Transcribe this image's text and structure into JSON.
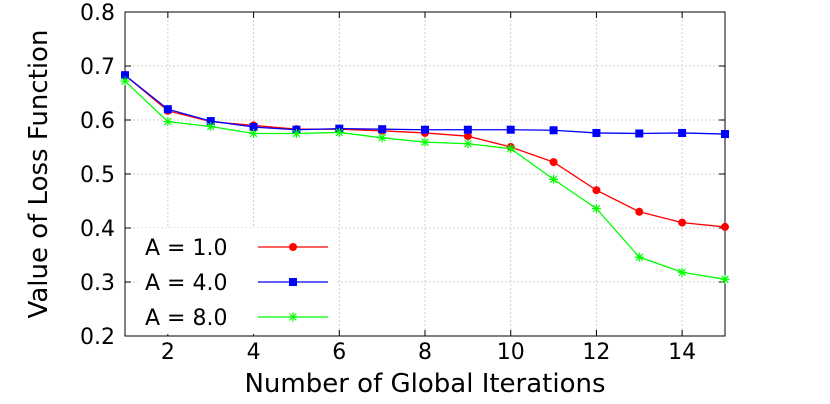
{
  "chart_data": {
    "type": "line",
    "title": "",
    "xlabel": "Number of Global Iterations",
    "ylabel": "Value of Loss Function",
    "xlim": [
      1,
      15
    ],
    "ylim": [
      0.2,
      0.8
    ],
    "x_ticks": [
      2,
      4,
      6,
      8,
      10,
      12,
      14
    ],
    "y_ticks": [
      0.2,
      0.3,
      0.4,
      0.5,
      0.6,
      0.7,
      0.8
    ],
    "x_tick_labels": [
      "2",
      "4",
      "6",
      "8",
      "10",
      "12",
      "14"
    ],
    "y_tick_labels": [
      "0.2",
      "0.3",
      "0.4",
      "0.5",
      "0.6",
      "0.7",
      "0.8"
    ],
    "grid": true,
    "legend_position": "bottom-left",
    "x": [
      1,
      2,
      3,
      4,
      5,
      6,
      7,
      8,
      9,
      10,
      11,
      12,
      13,
      14,
      15
    ],
    "series": [
      {
        "name": "A = 1.0",
        "color": "#ff0000",
        "marker": "circle",
        "values": [
          0.683,
          0.617,
          0.597,
          0.59,
          0.583,
          0.583,
          0.58,
          0.576,
          0.57,
          0.55,
          0.522,
          0.47,
          0.43,
          0.41,
          0.402
        ]
      },
      {
        "name": "A = 4.0",
        "color": "#0000ff",
        "marker": "square",
        "values": [
          0.683,
          0.62,
          0.598,
          0.587,
          0.582,
          0.584,
          0.583,
          0.582,
          0.582,
          0.582,
          0.581,
          0.576,
          0.575,
          0.576,
          0.574
        ]
      },
      {
        "name": "A = 8.0",
        "color": "#00ff00",
        "marker": "star",
        "values": [
          0.672,
          0.597,
          0.588,
          0.575,
          0.575,
          0.577,
          0.567,
          0.559,
          0.556,
          0.547,
          0.49,
          0.436,
          0.346,
          0.318,
          0.305
        ]
      }
    ]
  }
}
